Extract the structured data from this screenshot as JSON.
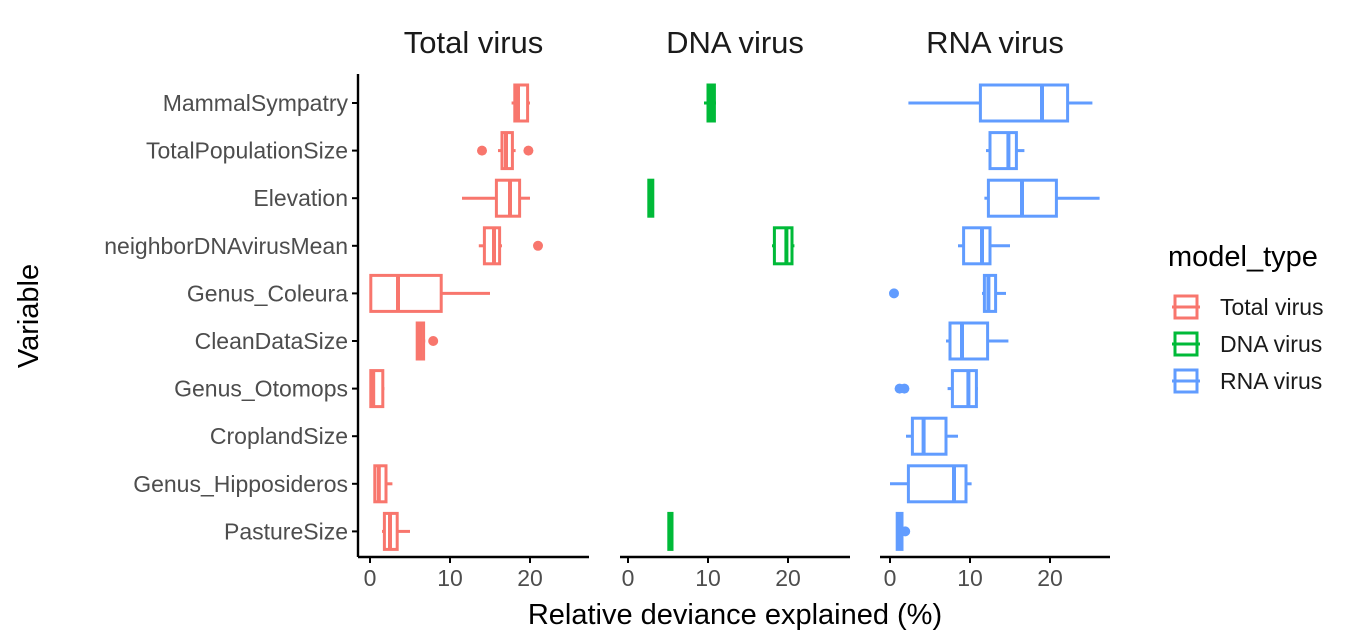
{
  "chart_data": {
    "type": "boxplot",
    "facets": [
      "Total virus",
      "DNA virus",
      "RNA virus"
    ],
    "categories": [
      "MammalSympatry",
      "TotalPopulationSize",
      "Elevation",
      "neighborDNAvirusMean",
      "Genus_Coleura",
      "CleanDataSize",
      "Genus_Otomops",
      "CroplandSize",
      "Genus_Hipposideros",
      "PastureSize"
    ],
    "xlabel": "Relative deviance explained (%)",
    "ylabel": "Variable",
    "xlim": [
      -1,
      27
    ],
    "xticks": [
      0,
      10,
      20
    ],
    "legend": {
      "title": "model_type",
      "position": "right",
      "entries": [
        "Total virus",
        "DNA virus",
        "RNA virus"
      ]
    },
    "colors": {
      "Total virus": "#F8766D",
      "DNA virus": "#00BA38",
      "RNA virus": "#619CFF"
    },
    "series": [
      {
        "name": "Total virus",
        "boxes": [
          {
            "category": "MammalSympatry",
            "min": 17.7,
            "q1": 18.1,
            "median": 18.5,
            "q3": 19.7,
            "max": 20.0,
            "outliers": []
          },
          {
            "category": "TotalPopulationSize",
            "min": 16.0,
            "q1": 16.5,
            "median": 17.0,
            "q3": 17.8,
            "max": 18.2,
            "outliers": [
              14.0,
              19.8
            ]
          },
          {
            "category": "Elevation",
            "min": 11.5,
            "q1": 15.8,
            "median": 17.5,
            "q3": 18.7,
            "max": 20.0,
            "outliers": []
          },
          {
            "category": "neighborDNAvirusMean",
            "min": 13.6,
            "q1": 14.3,
            "median": 15.5,
            "q3": 16.2,
            "max": 16.5,
            "outliers": [
              21.0
            ]
          },
          {
            "category": "Genus_Coleura",
            "min": 0.0,
            "q1": 0.1,
            "median": 3.5,
            "q3": 8.9,
            "max": 15.0,
            "outliers": []
          },
          {
            "category": "CleanDataSize",
            "min": 5.8,
            "q1": 5.9,
            "median": 6.3,
            "q3": 6.7,
            "max": 6.9,
            "outliers": [
              7.9
            ]
          },
          {
            "category": "Genus_Otomops",
            "min": 0.0,
            "q1": 0.1,
            "median": 0.4,
            "q3": 1.6,
            "max": 1.8,
            "outliers": []
          },
          {
            "category": "Genus_Hipposideros",
            "min": 0.5,
            "q1": 0.6,
            "median": 1.1,
            "q3": 2.0,
            "max": 2.8,
            "outliers": []
          },
          {
            "category": "PastureSize",
            "min": 1.5,
            "q1": 1.8,
            "median": 2.5,
            "q3": 3.4,
            "max": 5.0,
            "outliers": []
          }
        ]
      },
      {
        "name": "DNA virus",
        "boxes": [
          {
            "category": "MammalSympatry",
            "min": 9.5,
            "q1": 10.0,
            "median": 10.4,
            "q3": 10.8,
            "max": 11.0,
            "outliers": []
          },
          {
            "category": "Elevation",
            "min": 2.5,
            "q1": 2.6,
            "median": 2.9,
            "q3": 3.1,
            "max": 3.2,
            "outliers": []
          },
          {
            "category": "neighborDNAvirusMean",
            "min": 18.0,
            "q1": 18.3,
            "median": 19.8,
            "q3": 20.5,
            "max": 20.8,
            "outliers": []
          },
          {
            "category": "PastureSize",
            "min": 5.0,
            "q1": 5.1,
            "median": 5.3,
            "q3": 5.5,
            "max": 5.6,
            "outliers": []
          }
        ]
      },
      {
        "name": "RNA virus",
        "boxes": [
          {
            "category": "MammalSympatry",
            "min": 2.3,
            "q1": 11.3,
            "median": 19.0,
            "q3": 22.2,
            "max": 25.3,
            "outliers": []
          },
          {
            "category": "TotalPopulationSize",
            "min": 12.0,
            "q1": 12.5,
            "median": 14.8,
            "q3": 15.8,
            "max": 16.8,
            "outliers": []
          },
          {
            "category": "Elevation",
            "min": 11.8,
            "q1": 12.3,
            "median": 16.5,
            "q3": 20.8,
            "max": 26.2,
            "outliers": []
          },
          {
            "category": "neighborDNAvirusMean",
            "min": 8.5,
            "q1": 9.2,
            "median": 11.5,
            "q3": 12.5,
            "max": 15.0,
            "outliers": []
          },
          {
            "category": "Genus_Coleura",
            "min": 11.5,
            "q1": 11.8,
            "median": 12.3,
            "q3": 13.2,
            "max": 14.5,
            "outliers": [
              0.5
            ]
          },
          {
            "category": "CleanDataSize",
            "min": 7.0,
            "q1": 7.5,
            "median": 9.0,
            "q3": 12.2,
            "max": 14.8,
            "outliers": []
          },
          {
            "category": "Genus_Otomops",
            "min": 7.2,
            "q1": 7.8,
            "median": 9.8,
            "q3": 10.8,
            "max": 11.0,
            "outliers": [
              1.2,
              1.8
            ]
          },
          {
            "category": "CroplandSize",
            "min": 2.0,
            "q1": 2.8,
            "median": 4.2,
            "q3": 7.0,
            "max": 8.5,
            "outliers": []
          },
          {
            "category": "Genus_Hipposideros",
            "min": 0.0,
            "q1": 2.3,
            "median": 8.0,
            "q3": 9.5,
            "max": 10.2,
            "outliers": []
          },
          {
            "category": "PastureSize",
            "min": 0.8,
            "q1": 0.9,
            "median": 1.2,
            "q3": 1.5,
            "max": 1.6,
            "outliers": [
              1.9
            ]
          }
        ]
      }
    ]
  }
}
